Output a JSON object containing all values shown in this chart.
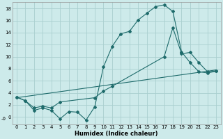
{
  "xlabel": "Humidex (Indice chaleur)",
  "bg_color": "#cdeaea",
  "grid_color": "#aacfcf",
  "line_color": "#1e6b6b",
  "xlim": [
    -0.5,
    23.5
  ],
  "ylim": [
    -1.2,
    19.0
  ],
  "xticks": [
    0,
    1,
    2,
    3,
    4,
    5,
    6,
    7,
    8,
    9,
    10,
    11,
    12,
    13,
    14,
    15,
    16,
    17,
    18,
    19,
    20,
    21,
    22,
    23
  ],
  "yticks": [
    0,
    2,
    4,
    6,
    8,
    10,
    12,
    14,
    16,
    18
  ],
  "ytick_labels": [
    "0",
    "2",
    "4",
    "6",
    "8",
    "10",
    "12",
    "14",
    "16",
    "18"
  ],
  "line1_x": [
    0,
    1,
    2,
    3,
    4,
    5,
    6,
    7,
    8,
    9,
    10,
    11,
    12,
    13,
    14,
    15,
    16,
    17,
    18,
    19,
    20,
    21,
    22,
    23
  ],
  "line1_y": [
    3.3,
    2.7,
    1.1,
    1.5,
    1.1,
    -0.3,
    0.9,
    0.8,
    -0.5,
    1.7,
    8.3,
    11.7,
    13.8,
    14.2,
    16.1,
    17.2,
    18.3,
    18.6,
    17.5,
    10.8,
    9.0,
    7.5,
    7.3,
    7.6
  ],
  "line2_x": [
    0,
    23
  ],
  "line2_y": [
    3.2,
    7.8
  ],
  "line3_x": [
    0,
    1,
    2,
    3,
    4,
    5,
    9,
    10,
    11,
    17,
    18,
    19,
    20,
    21,
    22,
    23
  ],
  "line3_y": [
    3.3,
    2.7,
    1.5,
    1.8,
    1.5,
    2.5,
    3.2,
    4.3,
    5.1,
    10.0,
    14.8,
    10.5,
    10.7,
    9.0,
    7.5,
    7.6
  ]
}
